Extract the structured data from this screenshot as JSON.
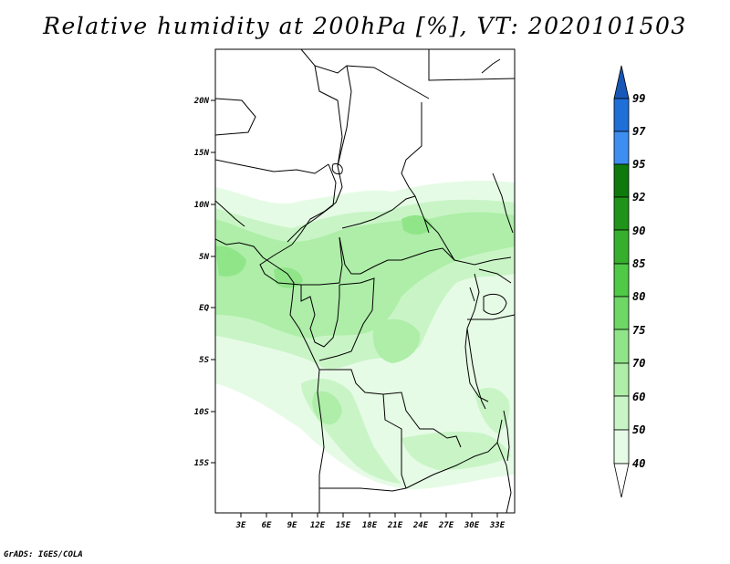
{
  "title": "Relative humidity at 200hPa [%], VT: 2020101503",
  "credit": "GrADS: IGES/COLA",
  "map": {
    "lat_labels": [
      "20N",
      "15N",
      "10N",
      "5N",
      "EQ",
      "5S",
      "10S",
      "15S"
    ],
    "lon_labels": [
      "3E",
      "6E",
      "9E",
      "12E",
      "15E",
      "18E",
      "21E",
      "24E",
      "27E",
      "30E",
      "33E"
    ],
    "lon_range": [
      0,
      35
    ],
    "lat_range": [
      -20,
      25
    ]
  },
  "colorbar": {
    "labels": [
      "99",
      "97",
      "95",
      "92",
      "90",
      "85",
      "80",
      "75",
      "70",
      "60",
      "50",
      "40"
    ],
    "colors": {
      "lightest_green": "#e6fbe6",
      "light_green_1": "#c9f5c6",
      "light_green_2": "#aeeea8",
      "mid_green_1": "#90e588",
      "mid_green_2": "#6fd765",
      "green_85": "#4fc946",
      "green_90": "#36b02c",
      "green_92": "#1f9418",
      "green_95": "#0e7a0b",
      "blue_97": "#3d8ef0",
      "blue_99": "#1f6fd9",
      "blue_top": "#1757b8"
    }
  }
}
